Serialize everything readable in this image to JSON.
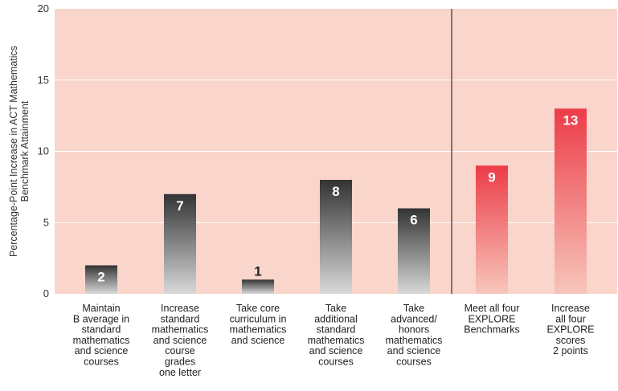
{
  "chart_data": {
    "type": "bar",
    "ylabel": [
      "Percentage-Point Increase in ACT Mathematics",
      "Benchmark Attainment"
    ],
    "ylim": [
      0,
      20
    ],
    "yticks": [
      "0",
      "5",
      "10",
      "15",
      "20"
    ],
    "grid": "horizontal",
    "categories": [
      [
        "Maintain",
        "B average in",
        "standard",
        "mathematics",
        "and science",
        "courses"
      ],
      [
        "Increase",
        "standard",
        "mathematics",
        "and science",
        "course",
        "grades",
        "one letter"
      ],
      [
        "Take core",
        "curriculum in",
        "mathematics",
        "and science"
      ],
      [
        "Take",
        "additional",
        "standard",
        "mathematics",
        "and science",
        "courses"
      ],
      [
        "Take",
        "advanced/",
        "honors",
        "mathematics",
        "and science",
        "courses"
      ],
      [
        "Meet all four",
        "EXPLORE",
        "Benchmarks"
      ],
      [
        "Increase",
        "all four",
        "EXPLORE",
        "scores",
        "2 points"
      ]
    ],
    "values": [
      2,
      7,
      1,
      8,
      6,
      9,
      13
    ],
    "data_labels": [
      "2",
      "7",
      "1",
      "8",
      "6",
      "9",
      "13"
    ],
    "bar_groups": [
      "dark",
      "dark",
      "dark",
      "dark",
      "dark",
      "red",
      "red"
    ],
    "divider_after_index": 4,
    "colors": {
      "plot_background": "#f9d5cb",
      "grid": "#ffffff",
      "dark_top": "#333333",
      "dark_bottom": "#d9d9d9",
      "red_top": "#ec3c48",
      "red_bottom": "#f7c6bb",
      "divider": "#555555",
      "dark_label_outside": "#222222",
      "label_inside": "#ffffff"
    }
  }
}
